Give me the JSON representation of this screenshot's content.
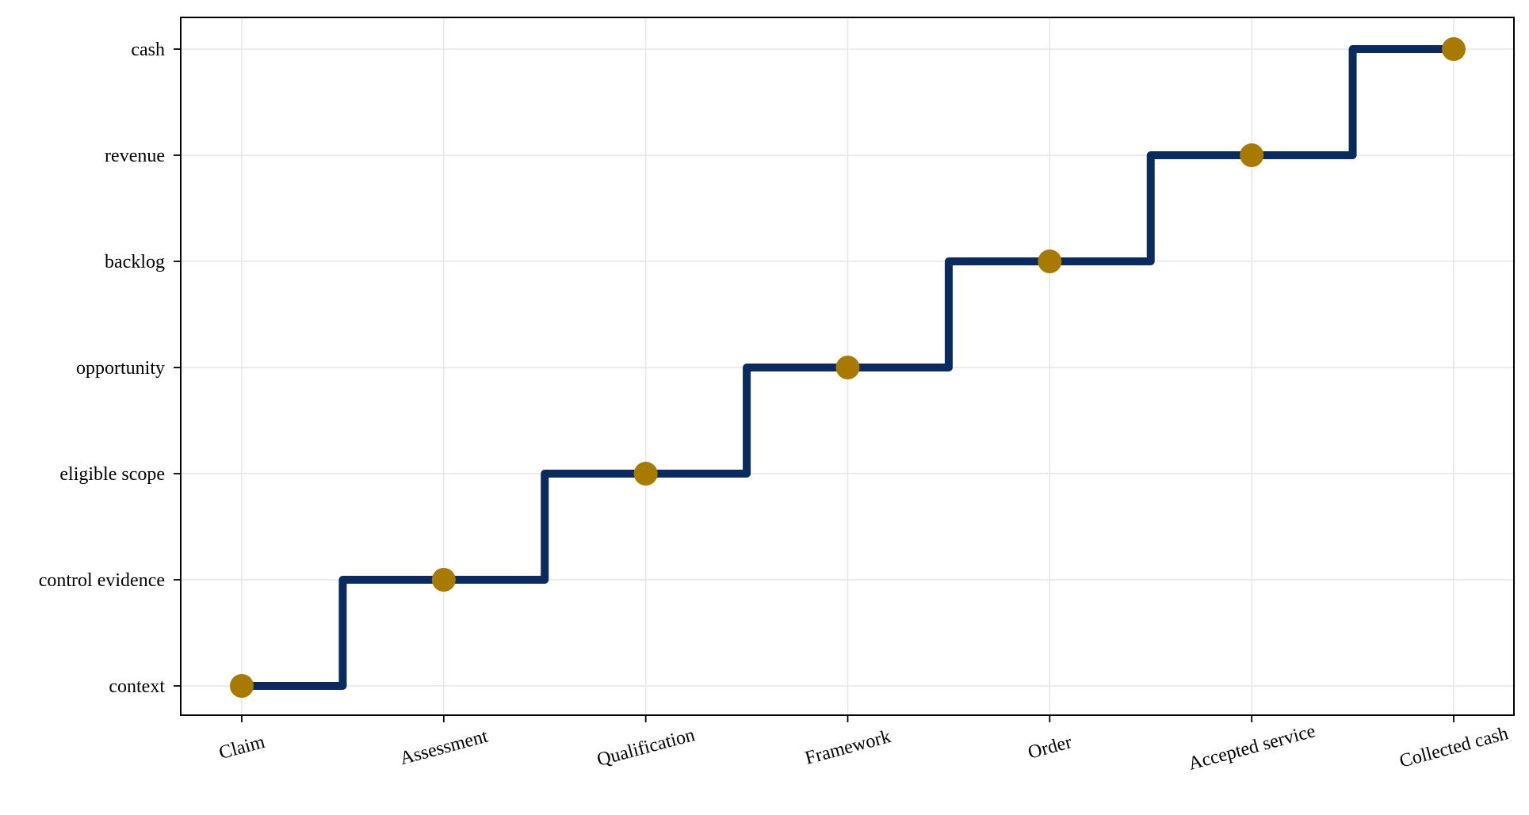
{
  "chart_data": {
    "type": "line",
    "style": "step-mid",
    "title": "",
    "xlabel": "",
    "ylabel": "",
    "x": [
      "Claim",
      "Assessment",
      "Qualification",
      "Framework",
      "Order",
      "Accepted service",
      "Collected cash"
    ],
    "y_categories": [
      "context",
      "control evidence",
      "eligible scope",
      "opportunity",
      "backlog",
      "revenue",
      "cash"
    ],
    "series": [
      {
        "values": [
          "context",
          "control evidence",
          "eligible scope",
          "opportunity",
          "backlog",
          "revenue",
          "cash"
        ],
        "line_color": "#0b2a5e",
        "marker_color": "#a87a00"
      }
    ],
    "grid": true,
    "legend": "none"
  }
}
